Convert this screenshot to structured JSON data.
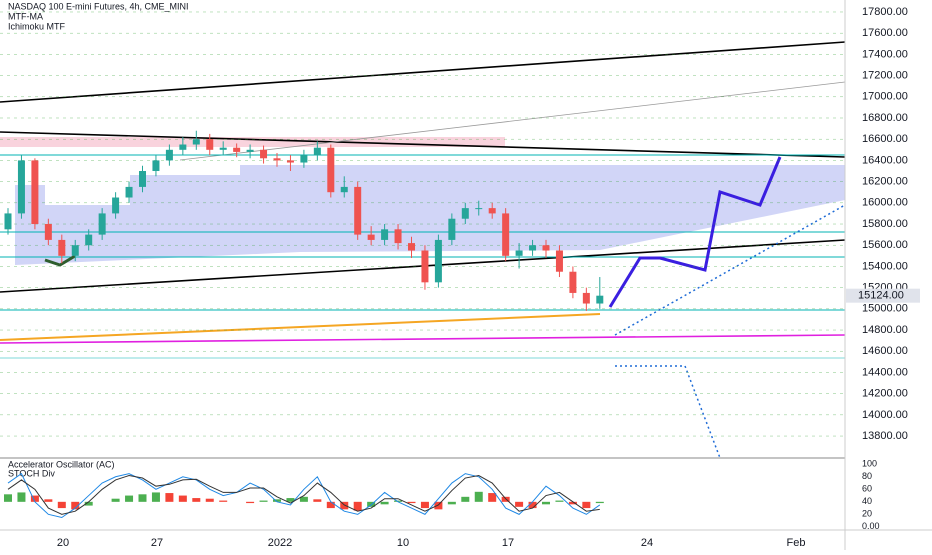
{
  "chart_data": [
    {
      "type": "candlestick",
      "title": "NASDAQ 100 E-mini Futures, 4h, CME_MINI",
      "indicators": [
        "MTF-MA",
        "Ichimoku MTF"
      ],
      "open": [
        15750,
        15900,
        16400,
        15800,
        15650,
        15500,
        15600,
        15700,
        15900,
        16050,
        16150,
        16300,
        16400,
        16500,
        16550,
        16600,
        16500,
        16520,
        16480,
        16500,
        16420,
        16400,
        16380,
        16450,
        16520,
        16100,
        16150,
        15700,
        15650,
        15750,
        15620,
        15550,
        15250,
        15650,
        15850,
        15950,
        15950,
        15900,
        15500,
        15550,
        15600,
        15550,
        15350,
        15150,
        15050
      ],
      "high": [
        15950,
        16450,
        16420,
        15850,
        15700,
        15650,
        15750,
        15950,
        16100,
        16200,
        16350,
        16450,
        16550,
        16620,
        16680,
        16650,
        16580,
        16560,
        16550,
        16540,
        16470,
        16450,
        16500,
        16580,
        16550,
        16250,
        16200,
        15780,
        15800,
        15800,
        15680,
        15600,
        15700,
        15900,
        16000,
        16020,
        16000,
        15950,
        15620,
        15650,
        15650,
        15600,
        15400,
        15200,
        15300
      ],
      "low": [
        15700,
        15850,
        15750,
        15600,
        15430,
        15450,
        15550,
        15650,
        15850,
        16000,
        16100,
        16250,
        16350,
        16450,
        16500,
        16450,
        16450,
        16430,
        16420,
        16370,
        16340,
        16300,
        16330,
        16400,
        16050,
        16050,
        15650,
        15600,
        15600,
        15560,
        15480,
        15180,
        15200,
        15600,
        15800,
        15880,
        15850,
        15450,
        15380,
        15500,
        15480,
        15300,
        15100,
        14980,
        15000
      ],
      "close": [
        15900,
        16400,
        15800,
        15650,
        15500,
        15600,
        15700,
        15900,
        16050,
        16150,
        16300,
        16400,
        16500,
        16550,
        16600,
        16500,
        16520,
        16480,
        16500,
        16420,
        16400,
        16380,
        16450,
        16520,
        16100,
        16150,
        15700,
        15650,
        15750,
        15620,
        15550,
        15250,
        15650,
        15850,
        15950,
        15950,
        15900,
        15500,
        15550,
        15600,
        15550,
        15350,
        15150,
        15050,
        15124
      ],
      "up_color": "#26a69a",
      "down_color": "#ef5350",
      "last_price": {
        "value": 15124,
        "label": "15124.00"
      },
      "ylim": [
        13593,
        17913
      ],
      "yticks": [
        {
          "value": 13800,
          "label": "13800.00"
        },
        {
          "value": 14000,
          "label": "14000.00"
        },
        {
          "value": 14200,
          "label": "14200.00"
        },
        {
          "value": 14400,
          "label": "14400.00"
        },
        {
          "value": 14600,
          "label": "14600.00"
        },
        {
          "value": 14800,
          "label": "14800.00"
        },
        {
          "value": 15000,
          "label": "15000.00"
        },
        {
          "value": 15200,
          "label": "15200.00"
        },
        {
          "value": 15400,
          "label": "15400.00"
        },
        {
          "value": 15600,
          "label": "15600.00"
        },
        {
          "value": 15800,
          "label": "15800.00"
        },
        {
          "value": 16000,
          "label": "16000.00"
        },
        {
          "value": 16200,
          "label": "16200.00"
        },
        {
          "value": 16400,
          "label": "16400.00"
        },
        {
          "value": 16600,
          "label": "16600.00"
        },
        {
          "value": 16800,
          "label": "16800.00"
        },
        {
          "value": 17000,
          "label": "17000.00"
        },
        {
          "value": 17200,
          "label": "17200.00"
        },
        {
          "value": 17400,
          "label": "17400.00"
        },
        {
          "value": 17600,
          "label": "17600.00"
        },
        {
          "value": 17800,
          "label": "17800.00"
        }
      ],
      "x_labels": [
        "20",
        "27",
        "2022",
        "10",
        "17",
        "24",
        "Feb"
      ]
    },
    {
      "type": "oscillator",
      "titles": [
        "Accelerator Oscillator (AC)",
        "STOCH Div"
      ],
      "histogram": [
        52,
        55,
        50,
        44,
        30,
        28,
        34,
        40,
        45,
        50,
        52,
        55,
        54,
        50,
        46,
        45,
        42,
        40,
        38,
        42,
        44,
        46,
        48,
        44,
        30,
        28,
        26,
        32,
        36,
        42,
        38,
        30,
        28,
        36,
        48,
        56,
        54,
        48,
        32,
        30,
        36,
        42,
        36,
        30,
        38
      ],
      "series": [
        {
          "color": "#1e88e5",
          "values": [
            70,
            85,
            40,
            20,
            15,
            30,
            50,
            70,
            80,
            85,
            75,
            60,
            70,
            80,
            75,
            60,
            50,
            55,
            70,
            60,
            40,
            35,
            60,
            80,
            40,
            25,
            20,
            35,
            55,
            40,
            30,
            20,
            45,
            70,
            85,
            80,
            60,
            30,
            20,
            40,
            65,
            50,
            30,
            20,
            35
          ]
        },
        {
          "color": "#333333",
          "values": [
            60,
            75,
            60,
            30,
            20,
            25,
            40,
            60,
            75,
            82,
            78,
            65,
            68,
            75,
            76,
            65,
            55,
            55,
            62,
            62,
            48,
            38,
            50,
            70,
            55,
            35,
            25,
            30,
            45,
            45,
            35,
            25,
            35,
            58,
            78,
            82,
            70,
            45,
            25,
            30,
            50,
            55,
            40,
            25,
            28
          ]
        }
      ],
      "ylim": [
        -5,
        110
      ],
      "yticks": [
        {
          "value": 0,
          "label": "0.00"
        },
        20,
        40,
        60,
        80,
        100
      ]
    }
  ]
}
